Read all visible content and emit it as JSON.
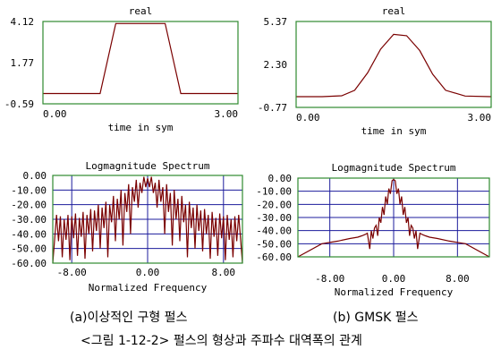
{
  "chart_data": [
    {
      "type": "line",
      "title": "real",
      "xlabel": "time in sym",
      "ylabel": "",
      "xlim": [
        0.0,
        3.0
      ],
      "ylim": [
        -0.59,
        4.12
      ],
      "x_ticks": [
        "0.00",
        "3.00"
      ],
      "y_ticks": [
        "4.12",
        "1.77",
        "-0.59"
      ],
      "grid": false,
      "series": [
        {
          "x": [
            0.0,
            0.88,
            1.12,
            1.88,
            2.12,
            3.0
          ],
          "y": [
            0.0,
            0.0,
            4.0,
            4.0,
            0.0,
            0.0
          ]
        }
      ]
    },
    {
      "type": "line",
      "title": "real",
      "xlabel": "time in sym",
      "ylabel": "",
      "xlim": [
        0.0,
        3.0
      ],
      "ylim": [
        -0.77,
        5.37
      ],
      "x_ticks": [
        "0.00",
        "3.00"
      ],
      "y_ticks": [
        "5.37",
        "2.30",
        "-0.77"
      ],
      "grid": false,
      "series": [
        {
          "x": [
            0.0,
            0.4,
            0.7,
            0.9,
            1.1,
            1.3,
            1.5,
            1.7,
            1.9,
            2.1,
            2.3,
            2.6,
            3.0
          ],
          "y": [
            0.0,
            0.0,
            0.06,
            0.45,
            1.7,
            3.4,
            4.45,
            4.35,
            3.3,
            1.6,
            0.45,
            0.04,
            0.0
          ]
        }
      ]
    },
    {
      "type": "line",
      "title": "Logmagnitude Spectrum",
      "xlabel": "Normalized Frequency",
      "ylabel": "",
      "xlim": [
        -10,
        10
      ],
      "ylim": [
        -60,
        0
      ],
      "x_ticks": [
        "-8.00",
        "0.00",
        "8.00"
      ],
      "y_ticks": [
        "0.00",
        "-10.00",
        "-20.00",
        "-30.00",
        "-40.00",
        "-50.00",
        "-60.00"
      ],
      "grid": true,
      "series": [
        {
          "x": [
            -10.0,
            -9.6,
            -9.4,
            -9.2,
            -9.0,
            -8.8,
            -8.6,
            -8.4,
            -8.2,
            -8.0,
            -7.8,
            -7.6,
            -7.4,
            -7.2,
            -7.0,
            -6.8,
            -6.6,
            -6.4,
            -6.2,
            -6.0,
            -5.8,
            -5.6,
            -5.4,
            -5.2,
            -5.0,
            -4.8,
            -4.6,
            -4.4,
            -4.2,
            -4.0,
            -3.8,
            -3.6,
            -3.4,
            -3.2,
            -3.0,
            -2.8,
            -2.6,
            -2.4,
            -2.2,
            -2.0,
            -1.8,
            -1.6,
            -1.4,
            -1.2,
            -1.0,
            -0.8,
            -0.6,
            -0.4,
            -0.2,
            0.0,
            0.2,
            0.4,
            0.6,
            0.8,
            1.0,
            1.2,
            1.4,
            1.6,
            1.8,
            2.0,
            2.2,
            2.4,
            2.6,
            2.8,
            3.0,
            3.2,
            3.4,
            3.6,
            3.8,
            4.0,
            4.2,
            4.4,
            4.6,
            4.8,
            5.0,
            5.2,
            5.4,
            5.6,
            5.8,
            6.0,
            6.2,
            6.4,
            6.6,
            6.8,
            7.0,
            7.2,
            7.4,
            7.6,
            7.8,
            8.0,
            8.2,
            8.4,
            8.6,
            8.8,
            9.0,
            9.2,
            9.4,
            9.6,
            10.0
          ],
          "y": [
            -60,
            -27,
            -45,
            -28,
            -56,
            -30,
            -44,
            -27,
            -58,
            -28,
            -43,
            -26,
            -55,
            -29,
            -42,
            -25,
            -57,
            -27,
            -40,
            -23,
            -52,
            -24,
            -38,
            -20,
            -50,
            -22,
            -36,
            -18,
            -56,
            -20,
            -32,
            -14,
            -45,
            -16,
            -30,
            -10,
            -48,
            -12,
            -25,
            -6,
            -40,
            -8,
            -18,
            -3,
            -22,
            -5,
            -12,
            -1,
            -8,
            -2,
            -8,
            -1,
            -12,
            -5,
            -22,
            -3,
            -18,
            -8,
            -40,
            -6,
            -25,
            -12,
            -48,
            -10,
            -30,
            -16,
            -45,
            -14,
            -32,
            -20,
            -56,
            -18,
            -36,
            -22,
            -50,
            -20,
            -38,
            -24,
            -52,
            -23,
            -40,
            -27,
            -57,
            -25,
            -42,
            -29,
            -55,
            -26,
            -43,
            -28,
            -58,
            -27,
            -44,
            -30,
            -56,
            -28,
            -45,
            -27,
            -60
          ]
        }
      ]
    },
    {
      "type": "line",
      "title": "Logmagnitude Spectrum",
      "xlabel": "Normalized Frequency",
      "ylabel": "",
      "xlim": [
        -12,
        12
      ],
      "ylim": [
        -60,
        0
      ],
      "x_ticks": [
        "-8.00",
        "0.00",
        "8.00"
      ],
      "y_ticks": [
        "0.00",
        "-10.00",
        "-20.00",
        "-30.00",
        "-40.00",
        "-50.00",
        "-60.00"
      ],
      "grid": true,
      "series": [
        {
          "x": [
            -12.0,
            -9.0,
            -7.0,
            -5.5,
            -4.5,
            -4.0,
            -3.6,
            -3.3,
            -3.0,
            -2.8,
            -2.6,
            -2.4,
            -2.2,
            -2.0,
            -1.8,
            -1.6,
            -1.4,
            -1.2,
            -1.0,
            -0.8,
            -0.6,
            -0.4,
            -0.2,
            0.0,
            0.2,
            0.4,
            0.6,
            0.8,
            1.0,
            1.2,
            1.4,
            1.6,
            1.8,
            2.0,
            2.2,
            2.4,
            2.6,
            2.8,
            3.0,
            3.3,
            3.6,
            4.0,
            4.5,
            5.5,
            7.0,
            9.0,
            12.0
          ],
          "y": [
            -60,
            -50,
            -48,
            -46,
            -45,
            -44,
            -43,
            -42,
            -54,
            -40,
            -46,
            -38,
            -36,
            -44,
            -30,
            -34,
            -22,
            -28,
            -14,
            -20,
            -8,
            -12,
            -2,
            -1,
            -2,
            -12,
            -8,
            -20,
            -14,
            -28,
            -22,
            -34,
            -30,
            -44,
            -36,
            -38,
            -46,
            -40,
            -54,
            -42,
            -43,
            -44,
            -45,
            -46,
            -48,
            -50,
            -60
          ]
        }
      ]
    }
  ],
  "captions": {
    "a": "(a)이상적인 구형 펄스",
    "b": "(b) GMSK 펄스",
    "figure": "<그림 1-12-2> 펄스의 형상과 주파수 대역폭의 관계"
  },
  "colors": {
    "frame": "#2f8a2f",
    "trace": "#7a0000",
    "grid": "#1c1c9c",
    "text": "#000000"
  }
}
